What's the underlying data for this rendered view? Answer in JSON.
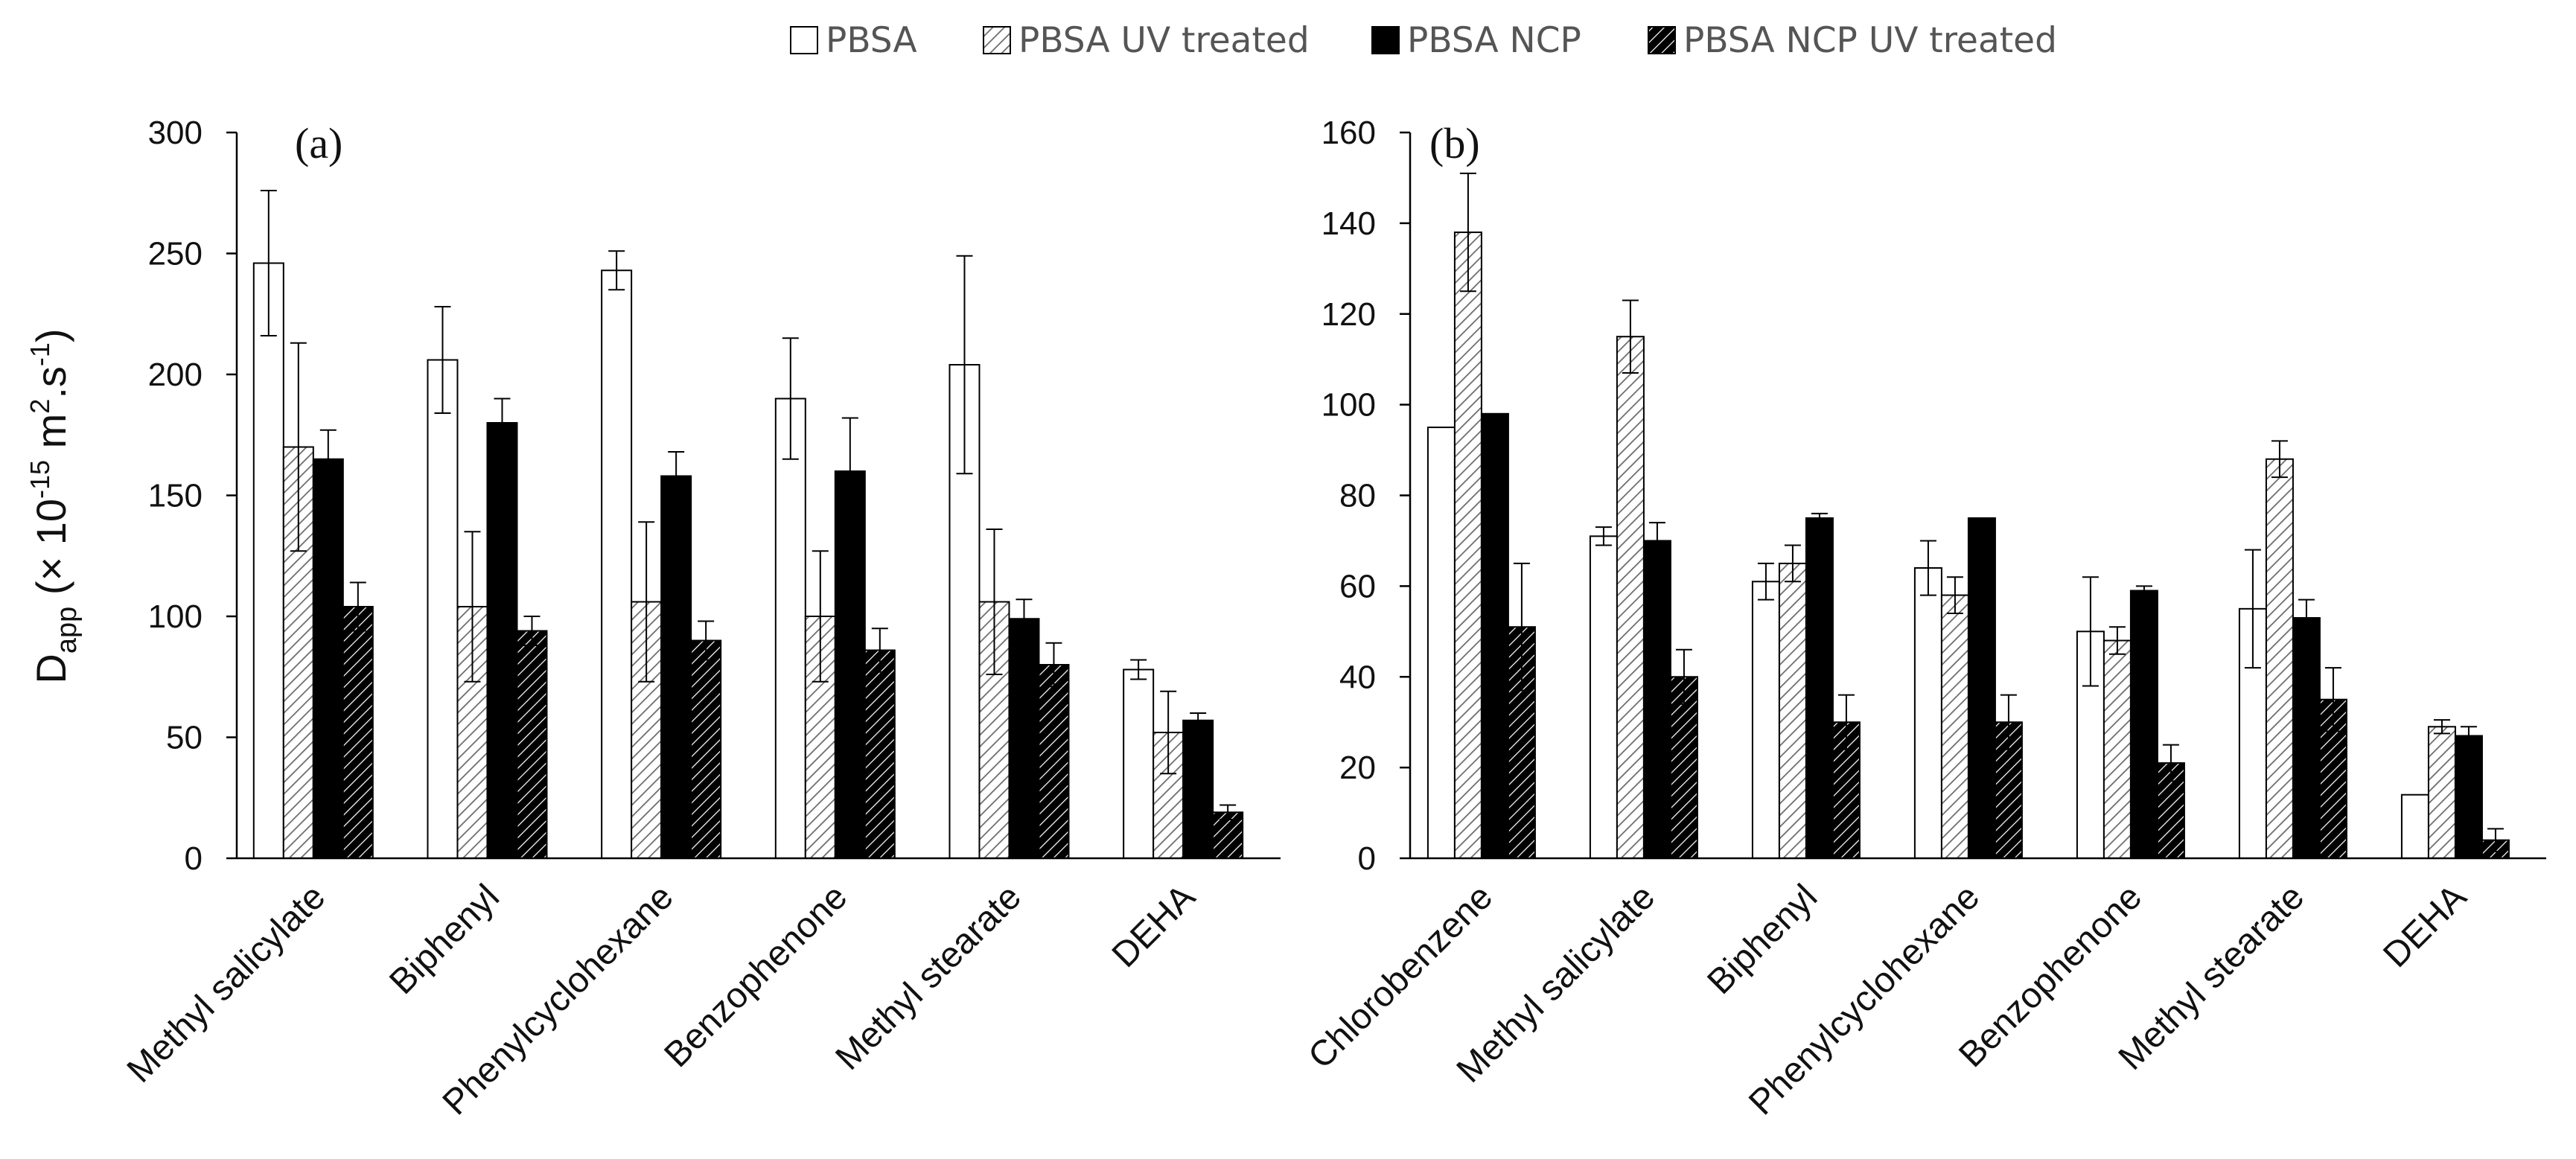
{
  "chart_data": [
    {
      "type": "bar",
      "panel_label": "(a)",
      "ylabel": "D",
      "ylabel_sub": "app",
      "ylabel_rest": " (× 10",
      "ylabel_exp1": "-15",
      "ylabel_unit": " m",
      "ylabel_exp2": "2",
      "ylabel_unit2": ".s",
      "ylabel_exp3": "-1",
      "ylabel_close": ")",
      "ylim": [
        0,
        300
      ],
      "yticks": [
        0,
        50,
        100,
        150,
        200,
        250,
        300
      ],
      "categories": [
        "Methyl salicylate",
        "Biphenyl",
        "Phenylcyclohexane",
        "Benzophenone",
        "Methyl stearate",
        "DEHA"
      ],
      "series": [
        {
          "name": "PBSA",
          "values": [
            246,
            206,
            243,
            190,
            204,
            78
          ],
          "errors": [
            30,
            22,
            8,
            25,
            45,
            4
          ]
        },
        {
          "name": "PBSA UV treated",
          "values": [
            170,
            104,
            106,
            100,
            106,
            52
          ],
          "errors": [
            43,
            31,
            33,
            27,
            30,
            17
          ]
        },
        {
          "name": "PBSA NCP",
          "values": [
            165,
            180,
            158,
            160,
            99,
            57
          ],
          "errors": [
            12,
            10,
            10,
            22,
            8,
            3
          ]
        },
        {
          "name": "PBSA NCP UV treated",
          "values": [
            104,
            94,
            90,
            86,
            80,
            19
          ],
          "errors": [
            10,
            6,
            8,
            9,
            9,
            3
          ]
        }
      ]
    },
    {
      "type": "bar",
      "panel_label": "(b)",
      "ylim": [
        0,
        160
      ],
      "yticks": [
        0,
        20,
        40,
        60,
        80,
        100,
        120,
        140,
        160
      ],
      "categories": [
        "Chlorobenzene",
        "Methyl salicylate",
        "Biphenyl",
        "Phenylcyclohexane",
        "Benzophenone",
        "Methyl stearate",
        "DEHA"
      ],
      "series": [
        {
          "name": "PBSA",
          "values": [
            95,
            71,
            61,
            64,
            50,
            55,
            14
          ],
          "errors": [
            0,
            2,
            4,
            6,
            12,
            13,
            0
          ]
        },
        {
          "name": "PBSA UV treated",
          "values": [
            138,
            115,
            65,
            58,
            48,
            88,
            29
          ],
          "errors": [
            13,
            8,
            4,
            4,
            3,
            4,
            1.5
          ]
        },
        {
          "name": "PBSA NCP",
          "values": [
            98,
            70,
            75,
            75,
            59,
            53,
            27
          ],
          "errors": [
            0,
            4,
            1,
            0,
            1,
            4,
            2
          ]
        },
        {
          "name": "PBSA NCP UV treated",
          "values": [
            51,
            40,
            30,
            30,
            21,
            35,
            4
          ],
          "errors": [
            14,
            6,
            6,
            6,
            4,
            7,
            2.5
          ]
        }
      ]
    }
  ],
  "legend": [
    {
      "name": "PBSA",
      "pattern": "open"
    },
    {
      "name": "PBSA UV treated",
      "pattern": "light-hatch"
    },
    {
      "name": "PBSA NCP",
      "pattern": "solid"
    },
    {
      "name": "PBSA NCP UV treated",
      "pattern": "dark-hatch"
    }
  ],
  "colors": {
    "open": "#ffffff",
    "solid": "#000000",
    "hatch_light_bg": "#ffffff",
    "hatch_light_line": "#555555",
    "hatch_dark_bg": "#000000",
    "hatch_dark_line": "#ffffff",
    "axis": "#000000",
    "legend_text": "#555555"
  }
}
